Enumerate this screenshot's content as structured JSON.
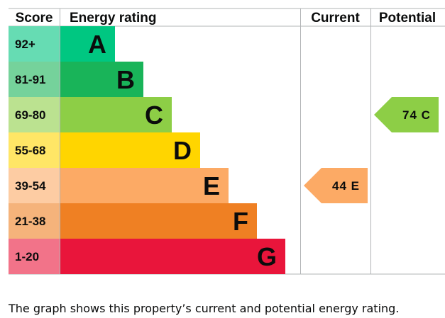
{
  "chart_data": {
    "type": "bar",
    "headers": {
      "score": "Score",
      "rating": "Energy rating",
      "current": "Current",
      "potential": "Potential"
    },
    "bands": [
      {
        "letter": "A",
        "range": "92+",
        "color": "#00c781",
        "score_color": "#66dcb3"
      },
      {
        "letter": "B",
        "range": "81-91",
        "color": "#19b459",
        "score_color": "#75d29b"
      },
      {
        "letter": "C",
        "range": "69-80",
        "color": "#8dce46",
        "score_color": "#bbe290"
      },
      {
        "letter": "D",
        "range": "55-68",
        "color": "#ffd500",
        "score_color": "#ffe666"
      },
      {
        "letter": "E",
        "range": "39-54",
        "color": "#fcaa65",
        "score_color": "#fdcca3"
      },
      {
        "letter": "F",
        "range": "21-38",
        "color": "#ef8023",
        "score_color": "#f5b37b"
      },
      {
        "letter": "G",
        "range": "1-20",
        "color": "#e9153b",
        "score_color": "#f27389"
      }
    ],
    "current": {
      "value": 44,
      "band": "E",
      "label": "44 E",
      "color": "#fcaa65"
    },
    "potential": {
      "value": 74,
      "band": "C",
      "label": "74 C",
      "color": "#8dce46"
    }
  },
  "caption": "The graph shows this property’s current and potential energy rating."
}
